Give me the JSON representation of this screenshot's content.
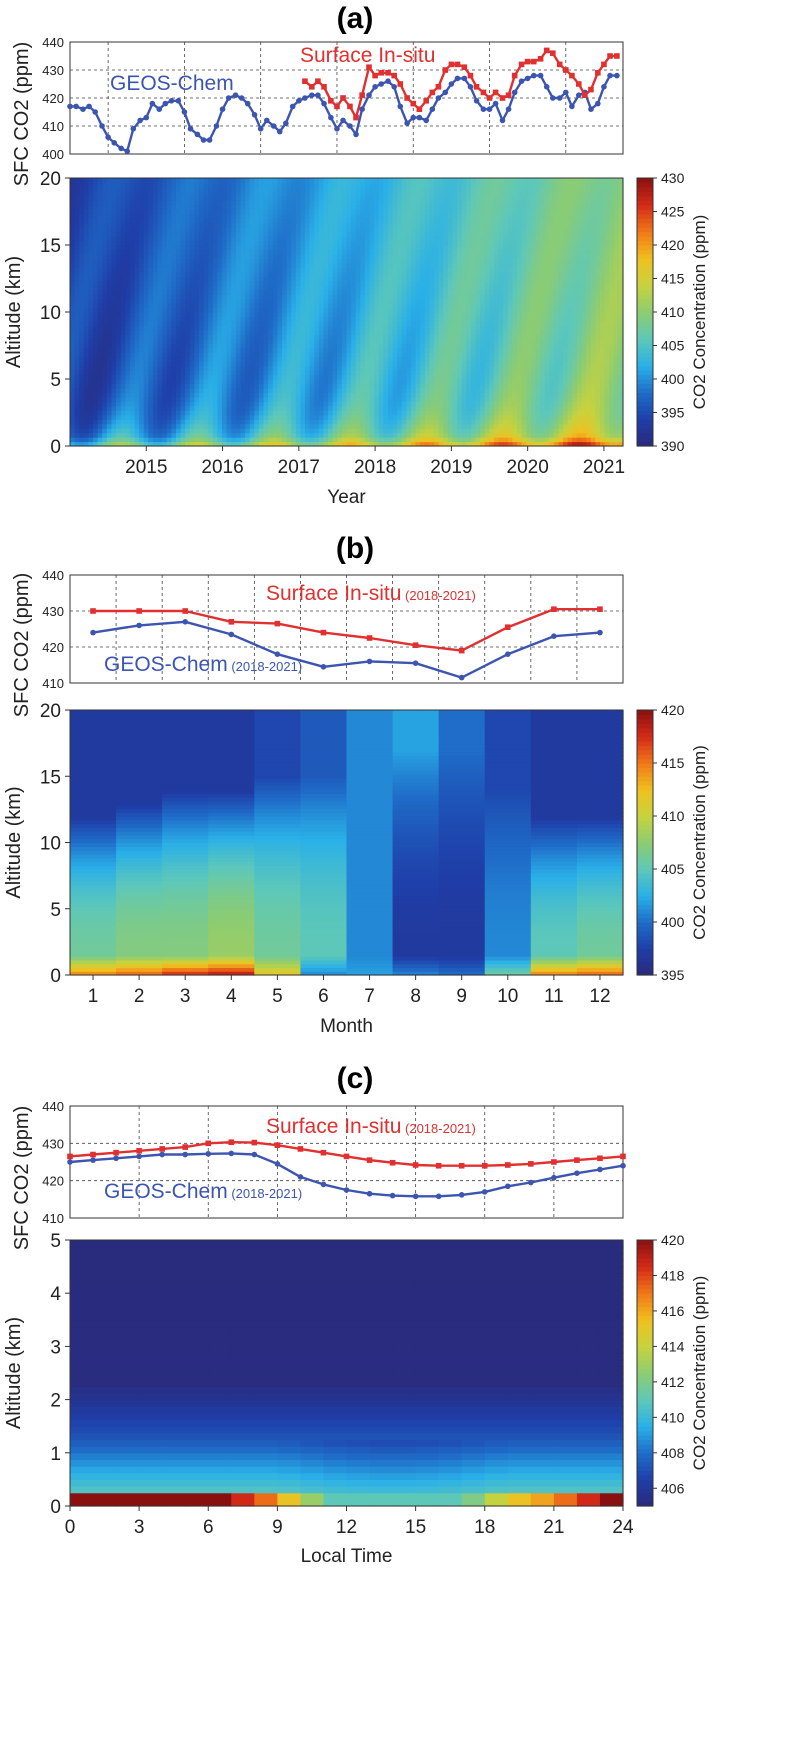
{
  "colormap": [
    "#2a2a7a",
    "#1f3ea8",
    "#1f6dc8",
    "#2ab0e8",
    "#5ec8b8",
    "#8ccc72",
    "#c6d23e",
    "#f0c020",
    "#f07818",
    "#d42a18",
    "#8a1010"
  ],
  "chart_data": [
    {
      "panel": "(a)",
      "type": "line",
      "ylabel": "SFC CO2 (ppm)",
      "ylim": [
        400,
        440
      ],
      "yticks": [
        400,
        410,
        420,
        430,
        440
      ],
      "xlim": [
        2014.5,
        2021.75
      ],
      "series": [
        {
          "name": "GEOS-Chem",
          "color": "#3c55b0",
          "x": [
            2014.5,
            2014.58,
            2014.67,
            2014.75,
            2014.83,
            2014.92,
            2015.0,
            2015.08,
            2015.17,
            2015.25,
            2015.33,
            2015.42,
            2015.5,
            2015.58,
            2015.67,
            2015.75,
            2015.83,
            2015.92,
            2016.0,
            2016.08,
            2016.17,
            2016.25,
            2016.33,
            2016.42,
            2016.5,
            2016.58,
            2016.67,
            2016.75,
            2016.83,
            2016.92,
            2017.0,
            2017.08,
            2017.17,
            2017.25,
            2017.33,
            2017.42,
            2017.5,
            2017.58,
            2017.67,
            2017.75,
            2017.83,
            2017.92,
            2018.0,
            2018.08,
            2018.17,
            2018.25,
            2018.33,
            2018.42,
            2018.5,
            2018.58,
            2018.67,
            2018.75,
            2018.83,
            2018.92,
            2019.0,
            2019.08,
            2019.17,
            2019.25,
            2019.33,
            2019.42,
            2019.5,
            2019.58,
            2019.67,
            2019.75,
            2019.83,
            2019.92,
            2020.0,
            2020.08,
            2020.17,
            2020.25,
            2020.33,
            2020.42,
            2020.5,
            2020.58,
            2020.67,
            2020.75,
            2020.83,
            2020.92,
            2021.0,
            2021.08,
            2021.17,
            2021.25,
            2021.33,
            2021.42,
            2021.5,
            2021.58,
            2021.67
          ],
          "values": [
            417,
            417,
            416,
            417,
            415,
            410,
            406,
            404,
            402,
            401,
            409,
            412,
            413,
            418,
            416,
            418,
            419,
            419,
            415,
            409,
            407,
            405,
            405,
            410,
            416,
            420,
            421,
            420,
            418,
            414,
            409,
            412,
            410,
            408,
            411,
            417,
            419,
            420,
            421,
            421,
            418,
            413,
            409,
            412,
            410,
            407,
            416,
            421,
            424,
            425,
            426,
            424,
            417,
            411,
            413,
            413,
            412,
            416,
            420,
            422,
            425,
            427,
            427,
            424,
            419,
            416,
            416,
            418,
            412,
            416,
            422,
            426,
            427,
            428,
            428,
            424,
            420,
            420,
            422,
            417,
            421,
            422,
            416,
            418,
            424,
            428,
            428
          ]
        },
        {
          "name": "Surface In-situ",
          "color": "#e03030",
          "x": [
            2017.58,
            2017.67,
            2017.75,
            2017.83,
            2017.92,
            2018.0,
            2018.08,
            2018.17,
            2018.25,
            2018.33,
            2018.42,
            2018.5,
            2018.58,
            2018.67,
            2018.75,
            2018.83,
            2018.92,
            2019.0,
            2019.08,
            2019.17,
            2019.25,
            2019.33,
            2019.42,
            2019.5,
            2019.58,
            2019.67,
            2019.75,
            2019.83,
            2019.92,
            2020.0,
            2020.08,
            2020.17,
            2020.25,
            2020.33,
            2020.42,
            2020.5,
            2020.58,
            2020.67,
            2020.75,
            2020.83,
            2020.92,
            2021.0,
            2021.08,
            2021.17,
            2021.25,
            2021.33,
            2021.42,
            2021.5,
            2021.58,
            2021.67
          ],
          "values": [
            426,
            424,
            426,
            424,
            419,
            417,
            420,
            417,
            413,
            421,
            431,
            428,
            429,
            429,
            428,
            425,
            420,
            418,
            416,
            419,
            422,
            424,
            430,
            432,
            432,
            431,
            428,
            424,
            422,
            420,
            422,
            420,
            421,
            428,
            432,
            433,
            433,
            434,
            437,
            436,
            432,
            430,
            428,
            425,
            421,
            423,
            429,
            432,
            435,
            435
          ]
        }
      ],
      "labels": {
        "surface": "Surface In-situ",
        "geos": "GEOS-Chem"
      },
      "heatmap": {
        "ylabel": "Altitude (km)",
        "xlabel": "Year",
        "yticks": [
          0,
          5,
          10,
          15,
          20
        ],
        "xticks": [
          2015,
          2016,
          2017,
          2018,
          2019,
          2020,
          2021
        ],
        "ylim": [
          0,
          20
        ],
        "colorbar": {
          "label": "CO2 Concentration (ppm)",
          "min": 390,
          "max": 430,
          "ticks": [
            390,
            395,
            400,
            405,
            410,
            415,
            420,
            425,
            430
          ]
        }
      }
    },
    {
      "panel": "(b)",
      "type": "line",
      "ylabel": "SFC CO2 (ppm)",
      "ylim": [
        410,
        440
      ],
      "yticks": [
        410,
        420,
        430,
        440
      ],
      "x": [
        1,
        2,
        3,
        4,
        5,
        6,
        7,
        8,
        9,
        10,
        11,
        12
      ],
      "series": [
        {
          "name": "Surface In-situ (2018-2021)",
          "color": "#e03030",
          "values": [
            430,
            430,
            430,
            427,
            426.5,
            424,
            422.5,
            420.5,
            419,
            425.5,
            430.5,
            430.5
          ]
        },
        {
          "name": "GEOS-Chem (2018-2021)",
          "color": "#3c55b0",
          "values": [
            424,
            426,
            427,
            423.5,
            418,
            414.5,
            416,
            415.5,
            411.5,
            418,
            423,
            424
          ]
        }
      ],
      "labels": {
        "surface": "Surface In-situ",
        "surface_sub": "(2018-2021)",
        "geos": "GEOS-Chem",
        "geos_sub": "(2018-2021)"
      },
      "heatmap": {
        "ylabel": "Altitude (km)",
        "xlabel": "Month",
        "yticks": [
          0,
          5,
          10,
          15,
          20
        ],
        "xticks": [
          1,
          2,
          3,
          4,
          5,
          6,
          7,
          8,
          9,
          10,
          11,
          12
        ],
        "ylim": [
          0,
          20
        ],
        "colorbar": {
          "label": "CO2 Concentration (ppm)",
          "min": 395,
          "max": 420,
          "ticks": [
            395,
            400,
            405,
            410,
            415,
            420
          ]
        }
      }
    },
    {
      "panel": "(c)",
      "type": "line",
      "ylabel": "SFC CO2 (ppm)",
      "ylim": [
        410,
        440
      ],
      "yticks": [
        410,
        420,
        430,
        440
      ],
      "x": [
        0,
        1,
        2,
        3,
        4,
        5,
        6,
        7,
        8,
        9,
        10,
        11,
        12,
        13,
        14,
        15,
        16,
        17,
        18,
        19,
        20,
        21,
        22,
        23,
        24
      ],
      "series": [
        {
          "name": "Surface In-situ (2018-2021)",
          "color": "#e03030",
          "values": [
            426.5,
            427,
            427.5,
            428,
            428.5,
            429,
            430,
            430.3,
            430.2,
            429.5,
            428.5,
            427.5,
            426.5,
            425.5,
            424.8,
            424.2,
            424,
            424,
            424,
            424.2,
            424.5,
            425,
            425.5,
            426,
            426.5
          ]
        },
        {
          "name": "GEOS-Chem (2018-2021)",
          "color": "#3c55b0",
          "values": [
            425,
            425.5,
            426,
            426.5,
            427,
            427,
            427.2,
            427.3,
            427,
            424.5,
            421,
            419,
            417.5,
            416.5,
            416,
            415.8,
            415.8,
            416.2,
            417,
            418.5,
            419.5,
            420.8,
            422,
            423,
            424
          ]
        }
      ],
      "labels": {
        "surface": "Surface In-situ",
        "surface_sub": "(2018-2021)",
        "geos": "GEOS-Chem",
        "geos_sub": "(2018-2021)"
      },
      "heatmap": {
        "ylabel": "Altitude (km)",
        "xlabel": "Local Time",
        "yticks": [
          0,
          1,
          2,
          3,
          4,
          5
        ],
        "xticks": [
          0,
          3,
          6,
          9,
          12,
          15,
          18,
          21,
          24
        ],
        "ylim": [
          0,
          5
        ],
        "colorbar": {
          "label": "CO2 Concentration (ppm)",
          "min": 405,
          "max": 420,
          "ticks": [
            406,
            408,
            410,
            412,
            414,
            416,
            418,
            420
          ]
        }
      }
    }
  ]
}
